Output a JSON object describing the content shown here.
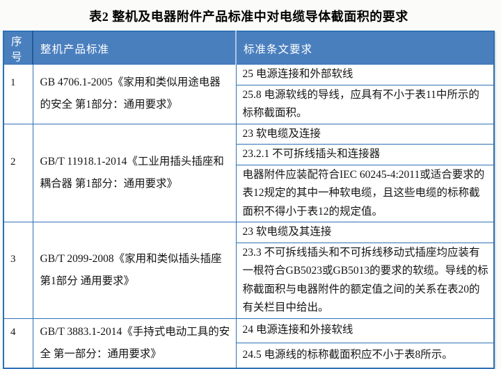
{
  "title": "表2 整机及电器附件产品标准中对电缆导体截面积的要求",
  "colors": {
    "border": "#2d70b5",
    "header_bg": "#4a7fbe",
    "header_text": "#ffffff",
    "cell_bg": "#ffffff",
    "text": "#141414",
    "page_bg": "#fbfbf9"
  },
  "table": {
    "header": {
      "col_no": "序号",
      "col_standard": "整机产品标准",
      "col_requirement": "标准条文要求"
    },
    "rows": [
      {
        "no": "1",
        "standard": "GB 4706.1-2005《家用和类似用途电器的安全 第1部分：通用要求》",
        "requirements": [
          "25 电源连接和外部软线",
          "25.8 电源软线的导线，应具有不小于表11中所示的标称截面积。"
        ]
      },
      {
        "no": "2",
        "standard": "GB/T 11918.1-2014《工业用插头插座和耦合器 第1部分：通用要求》",
        "requirements": [
          "23 软电缆及连接",
          "23.2.1 不可拆线插头和连接器",
          "电器附件应装配符合IEC 60245-4:2011或适合要求的表12规定的其中一种软电缆，且这些电缆的标称截面积不得小于表12的规定值。"
        ]
      },
      {
        "no": "3",
        "standard": "GB/T 2099-2008《家用和类似插头插座 第1部分 通用要求》",
        "requirements": [
          "23 软电缆及其连接",
          "23.3 不可拆线插头和不可拆线移动式插座均应装有一根符合GB5023或GB5013的要求的软缆。导线的标称截面积与电器附件的额定值之间的关系在表20的有关栏目中给出。"
        ]
      },
      {
        "no": "4",
        "standard": "GB/T 3883.1-2014《手持式电动工具的安全 第一部分：通用要求》",
        "requirements": [
          "24 电源连接和外接软线",
          "24.5 电源线的标称截面积应不小于表8所示。"
        ]
      }
    ]
  }
}
